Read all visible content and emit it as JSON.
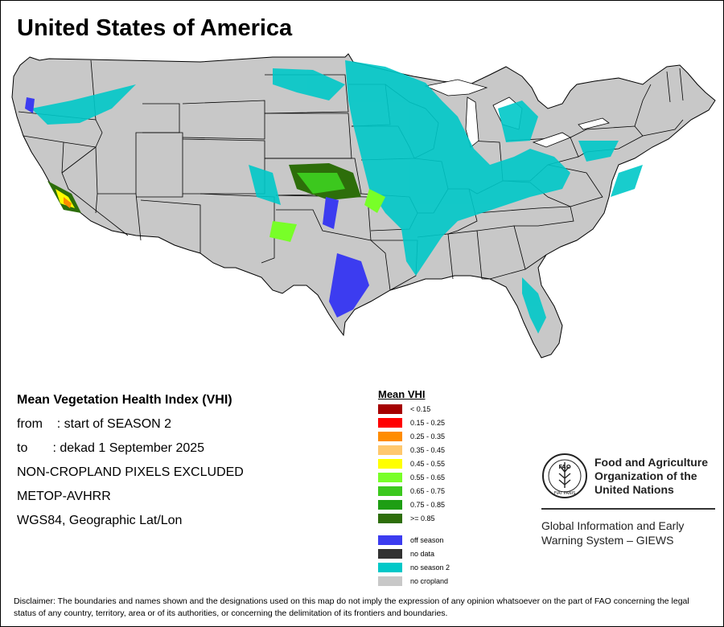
{
  "map": {
    "title": "United States of America"
  },
  "info": {
    "lines": [
      "Mean Vegetation Health Index (VHI)",
      "from    : start of SEASON 2",
      "to       : dekad 1 September 2025",
      "NON-CROPLAND PIXELS EXCLUDED",
      "METOP-AVHRR",
      "WGS84, Geographic Lat/Lon"
    ]
  },
  "legend": {
    "title": "Mean VHI",
    "classes": [
      {
        "label": "< 0.15",
        "color": "#a50000"
      },
      {
        "label": "0.15 - 0.25",
        "color": "#ff0000"
      },
      {
        "label": "0.25 - 0.35",
        "color": "#ff8c00"
      },
      {
        "label": "0.35 - 0.45",
        "color": "#ffc86e"
      },
      {
        "label": "0.45 - 0.55",
        "color": "#ffff00"
      },
      {
        "label": "0.55 - 0.65",
        "color": "#78ff28"
      },
      {
        "label": "0.65 - 0.75",
        "color": "#3cc81e"
      },
      {
        "label": "0.75 - 0.85",
        "color": "#1e9e14"
      },
      {
        "label": ">= 0.85",
        "color": "#2d6e0a"
      }
    ],
    "special": [
      {
        "label": "off season",
        "color": "#3c3cf0"
      },
      {
        "label": "no data",
        "color": "#323232"
      },
      {
        "label": "no season 2",
        "color": "#00c8c8"
      },
      {
        "label": "no cropland",
        "color": "#c8c8c8"
      }
    ]
  },
  "fao": {
    "emblem_text": "FAO",
    "emblem_motto": "FIAT PANIS",
    "name_lines": [
      "Food and Agriculture",
      "Organization of the",
      "United Nations"
    ],
    "sub_lines": [
      "Global Information and Early",
      "Warning System – GIEWS"
    ]
  },
  "disclaimer": "Disclaimer: The boundaries and names shown and the designations used on this map do not imply the expression of any opinion whatsoever on the part of FAO concerning the legal status of any country, territory, area or of its authorities, or concerning the delimitation of its frontiers and boundaries.",
  "colors": {
    "land": "#c8c8c8",
    "no_season": "#00c8c8",
    "off_season": "#3c3cf0",
    "high_vhi": "#2d6e0a",
    "mid_vhi": "#78ff28",
    "border": "#000000"
  }
}
